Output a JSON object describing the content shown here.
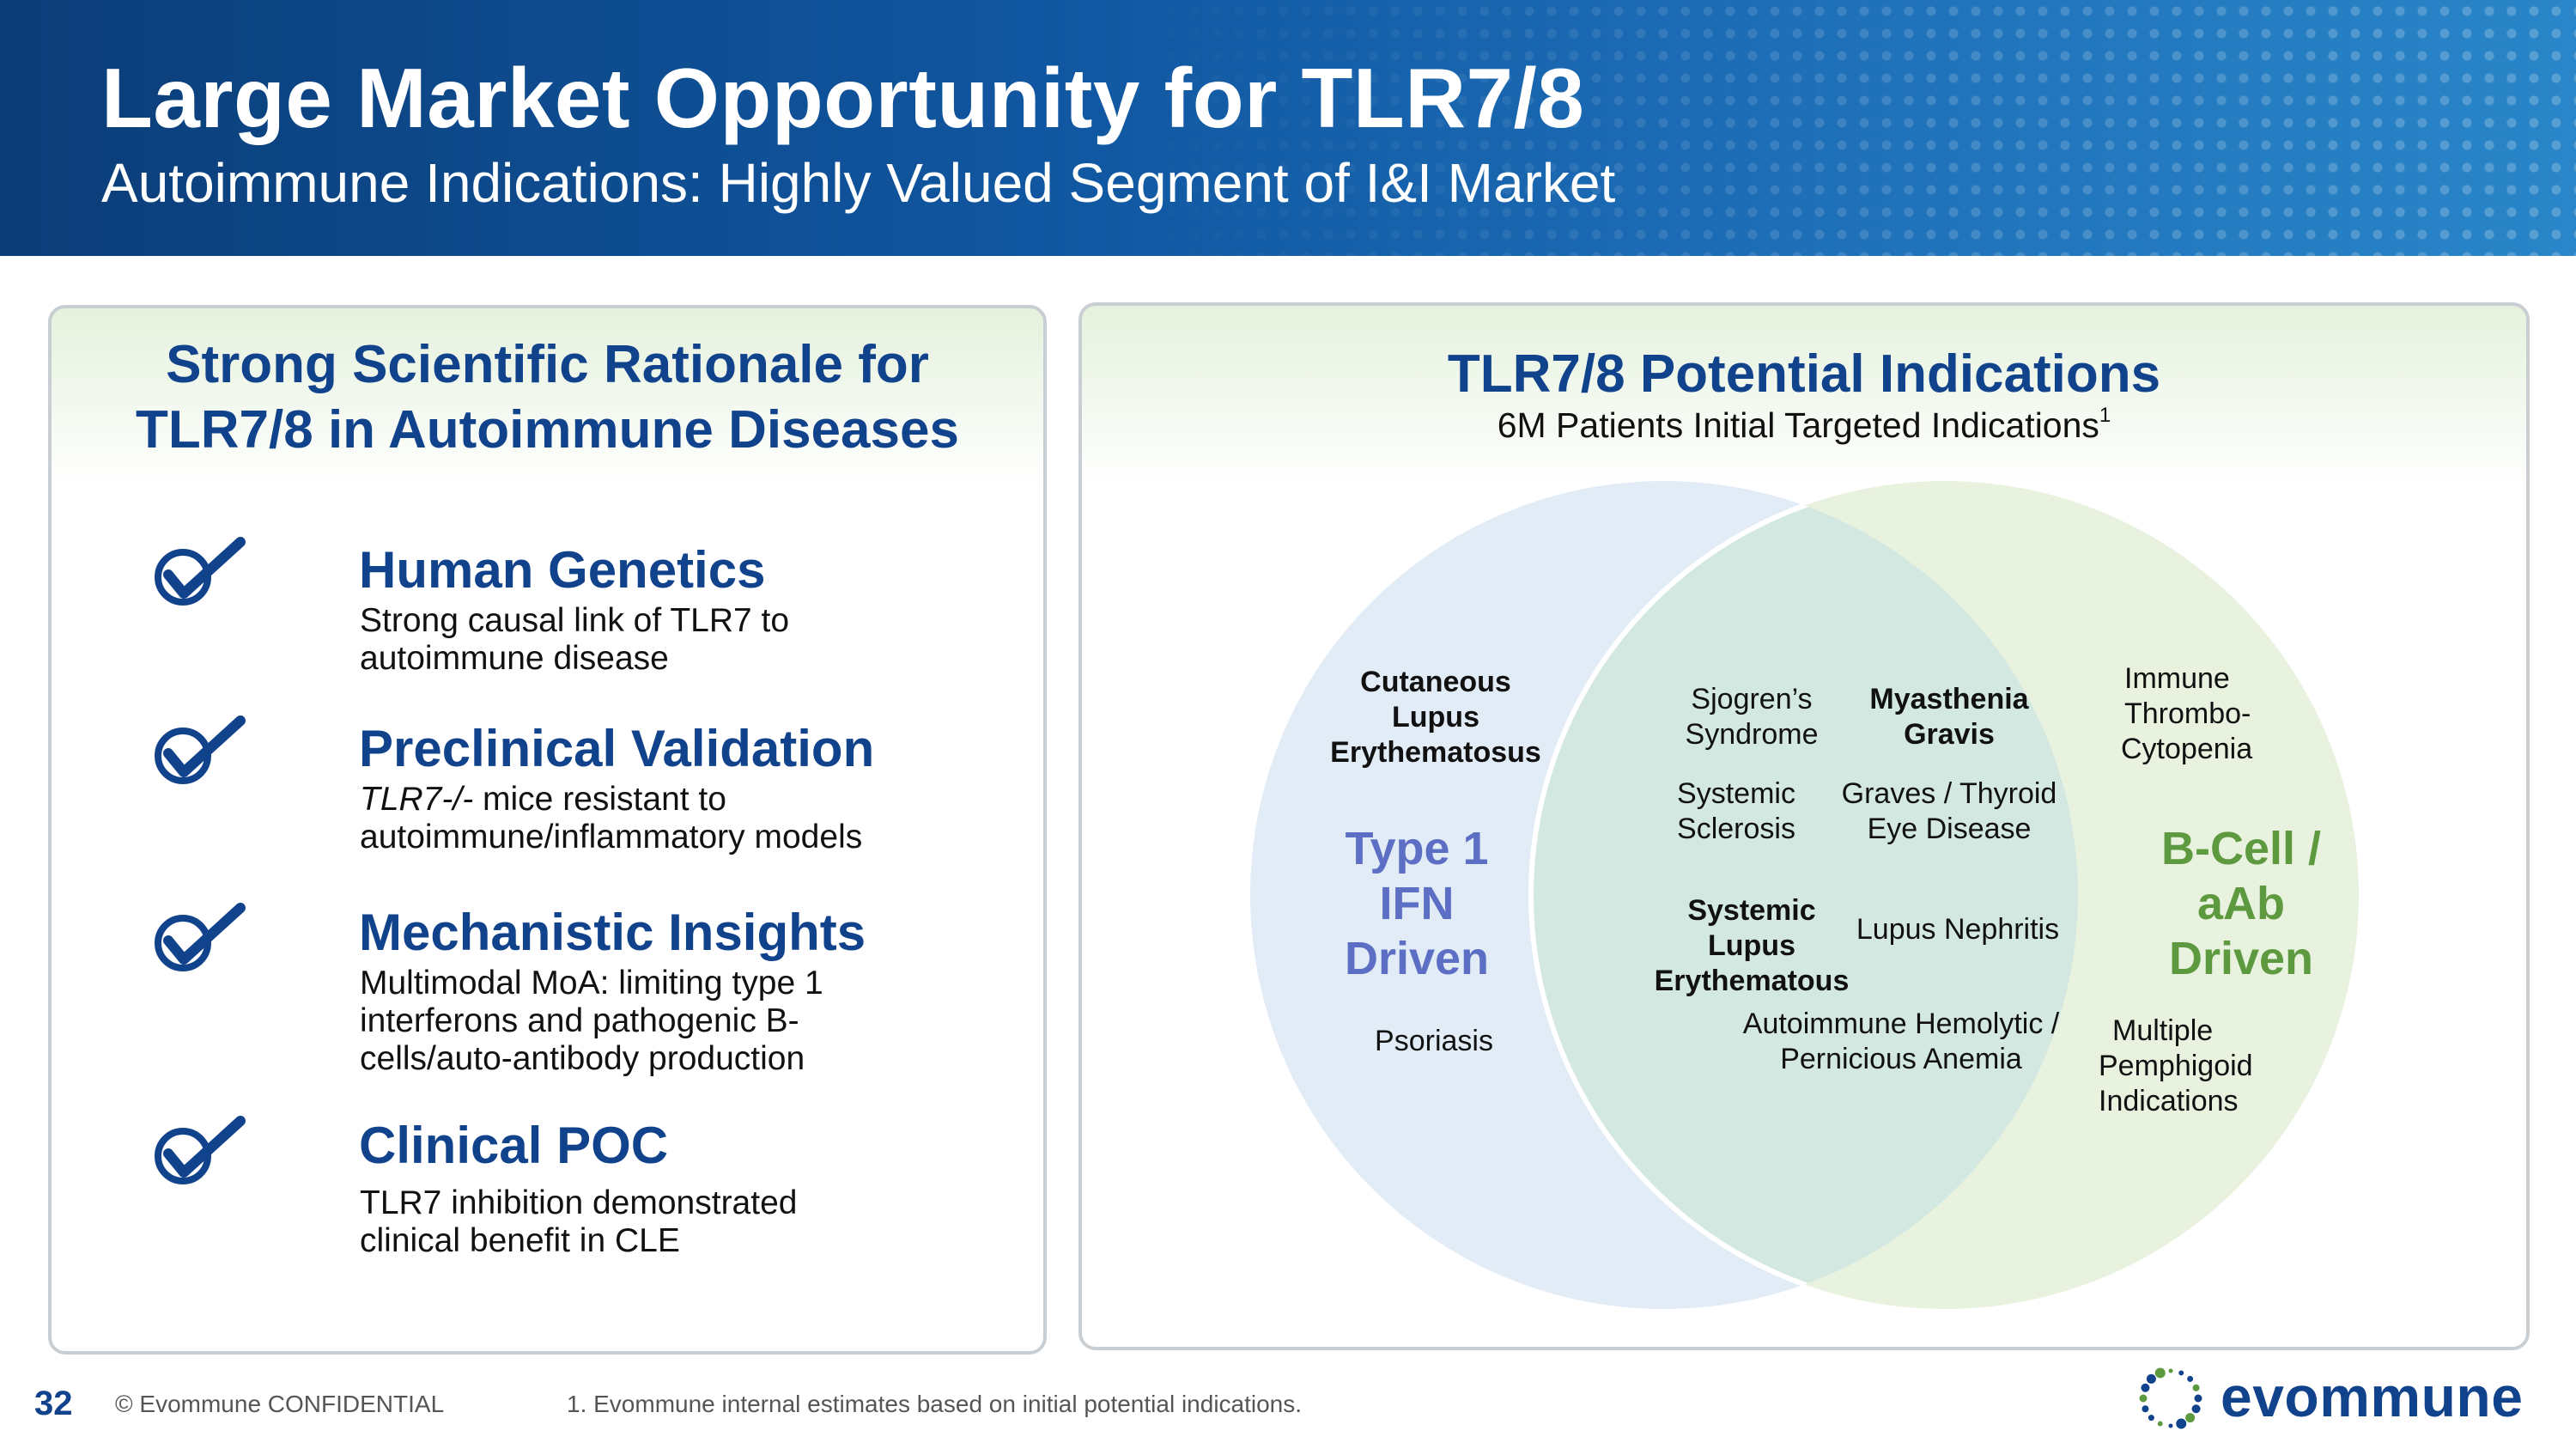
{
  "header": {
    "title": "Large Market Opportunity for TLR7/8",
    "subtitle": "Autoimmune Indications: Highly Valued Segment of I&I Market"
  },
  "left_panel": {
    "heading_line1": "Strong Scientific Rationale for",
    "heading_line2": "TLR7/8 in Autoimmune Diseases",
    "items": [
      {
        "title": "Human Genetics",
        "desc_line1": "Strong causal link of TLR7 to",
        "desc_line2": "autoimmune disease"
      },
      {
        "title": "Preclinical Validation",
        "desc_line1_italic": "TLR7-/-",
        "desc_line1_rest": " mice resistant to",
        "desc_line2": "autoimmune/inflammatory models"
      },
      {
        "title": "Mechanistic Insights",
        "desc_line1": "Multimodal MoA: limiting type 1",
        "desc_line2": "interferons and pathogenic B-",
        "desc_line3": "cells/auto-antibody production"
      },
      {
        "title": "Clinical POC",
        "desc_line1": "TLR7 inhibition demonstrated",
        "desc_line2": "clinical benefit in CLE"
      }
    ],
    "check_icon": "checkmark-circle-icon"
  },
  "right_panel": {
    "heading": "TLR7/8 Potential Indications",
    "subheading": "6M Patients Initial Targeted Indications",
    "footnote_marker": "1",
    "venn": {
      "left_label": [
        "Type 1",
        "IFN",
        "Driven"
      ],
      "right_label": [
        "B-Cell /",
        "aAb",
        "Driven"
      ],
      "left_only": {
        "cle": [
          "Cutaneous",
          "Lupus",
          "Erythematosus"
        ],
        "psoriasis": "Psoriasis"
      },
      "overlap": {
        "sjogren": [
          "Sjogren’s",
          "Syndrome"
        ],
        "myasthenia": [
          "Myasthenia",
          "Gravis"
        ],
        "systemic_sclerosis": [
          "Systemic",
          "Sclerosis"
        ],
        "graves": [
          "Graves / Thyroid",
          "Eye Disease"
        ],
        "sle": [
          "Systemic",
          "Lupus",
          "Erythematous"
        ],
        "lupus_nephritis": "Lupus Nephritis",
        "aiha": [
          "Autoimmune Hemolytic /",
          "Pernicious Anemia"
        ]
      },
      "right_only": {
        "itp": [
          "Immune",
          "Thrombo-",
          "Cytopenia"
        ],
        "pemphigoid": [
          "Multiple",
          "Pemphigoid",
          "Indications"
        ]
      },
      "colors": {
        "left_circle": "#e1ecf6",
        "right_circle": "#e8f2df",
        "overlap": "#d3e8e0"
      }
    }
  },
  "footer": {
    "page_number": "32",
    "confidential": "© Evommune CONFIDENTIAL",
    "note": "1. Evommune internal estimates based on initial potential indications.",
    "logo_text": "evommune"
  }
}
